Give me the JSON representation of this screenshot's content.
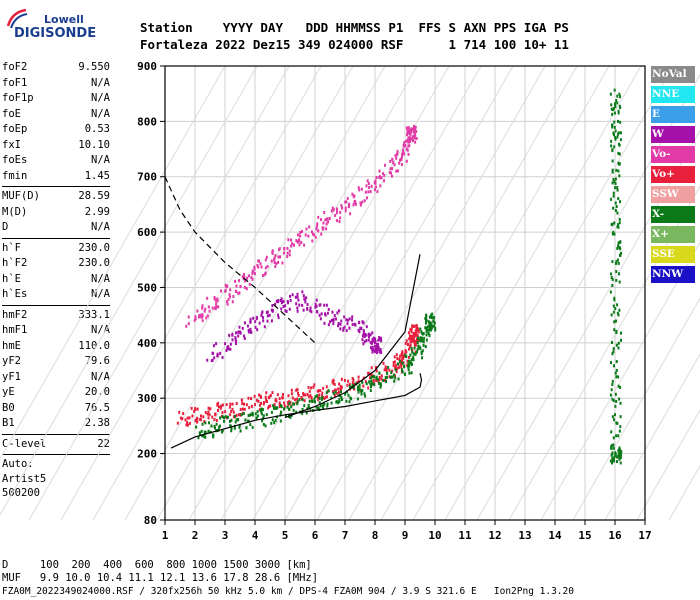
{
  "logo": {
    "brand": "Lowell",
    "product": "DIGISONDE"
  },
  "header": {
    "line1": "Station    YYYY DAY   DDD HHMMSS P1  FFS S AXN PPS IGA PS",
    "line2": "Fortaleza 2022 Dez15 349 024000 RSF      1 714 100 10+ 11"
  },
  "params": {
    "group1": [
      {
        "k": "foF2",
        "v": "9.550"
      },
      {
        "k": "foF1",
        "v": "N/A"
      },
      {
        "k": "foF1p",
        "v": "N/A"
      },
      {
        "k": "foE",
        "v": "N/A"
      },
      {
        "k": "foEp",
        "v": "0.53"
      },
      {
        "k": "fxI",
        "v": "10.10"
      },
      {
        "k": "foEs",
        "v": "N/A"
      },
      {
        "k": "fmin",
        "v": "1.45"
      }
    ],
    "group2": [
      {
        "k": "MUF(D)",
        "v": "28.59"
      },
      {
        "k": "M(D)",
        "v": "2.99"
      },
      {
        "k": "D",
        "v": "N/A"
      }
    ],
    "group3": [
      {
        "k": "h`F",
        "v": "230.0"
      },
      {
        "k": "h`F2",
        "v": "230.0"
      },
      {
        "k": "h`E",
        "v": "N/A"
      },
      {
        "k": "h`Es",
        "v": "N/A"
      }
    ],
    "group4": [
      {
        "k": "hmF2",
        "v": "333.1"
      },
      {
        "k": "hmF1",
        "v": "N/A"
      },
      {
        "k": "hmE",
        "v": "110.0"
      },
      {
        "k": "yF2",
        "v": "79.6"
      },
      {
        "k": "yF1",
        "v": "N/A"
      },
      {
        "k": "yE",
        "v": "20.0"
      },
      {
        "k": "B0",
        "v": "76.5"
      },
      {
        "k": "B1",
        "v": "2.38"
      }
    ],
    "group5": [
      {
        "k": "C-level",
        "v": "22"
      }
    ],
    "extra": [
      "Auto:",
      "Artist5",
      "500200"
    ]
  },
  "legend": [
    {
      "label": "NoVal",
      "color": "#8a8a8a"
    },
    {
      "label": "NNE",
      "color": "#22e6f0"
    },
    {
      "label": "E",
      "color": "#3a9ee8"
    },
    {
      "label": "W",
      "color": "#a410a8"
    },
    {
      "label": "Vo-",
      "color": "#e23aa6"
    },
    {
      "label": "Vo+",
      "color": "#e8203c"
    },
    {
      "label": "SSW",
      "color": "#f0a0a0"
    },
    {
      "label": "X-",
      "color": "#0a7a18"
    },
    {
      "label": "X+",
      "color": "#7ab860"
    },
    {
      "label": "SSE",
      "color": "#d8d81c"
    },
    {
      "label": "NNW",
      "color": "#1a10c8"
    }
  ],
  "footer": {
    "d_line": "D     100  200  400  600  800 1000 1500 3000 [km]",
    "muf_line": "MUF   9.9 10.0 10.4 11.1 12.1 13.6 17.8 28.6 [MHz]",
    "file_line": "FZA0M_2022349024000.RSF / 320fx256h 50 kHz 5.0 km / DPS-4 FZA0M 904 / 3.9 S 321.6 E   Ion2Png 1.3.20"
  },
  "chart_data": {
    "type": "scatter",
    "xlim": [
      1,
      17
    ],
    "ylim": [
      80,
      900
    ],
    "x_ticks": [
      1,
      2,
      3,
      4,
      5,
      6,
      7,
      8,
      9,
      10,
      11,
      12,
      13,
      14,
      15,
      16,
      17
    ],
    "y_ticks": [
      80,
      200,
      300,
      400,
      500,
      600,
      700,
      800,
      900
    ],
    "grid": true,
    "legend_position": "right",
    "traces": [
      {
        "name": "o-trace",
        "color": "#e8203c",
        "x": [
          1.5,
          2.5,
          3.5,
          4.5,
          5.5,
          6.5,
          7.5,
          8.5,
          9.0,
          9.3
        ],
        "y": [
          265,
          275,
          285,
          300,
          305,
          320,
          330,
          355,
          380,
          420
        ]
      },
      {
        "name": "x-trace",
        "color": "#0a7a18",
        "x": [
          2.0,
          3.0,
          4.0,
          5.0,
          6.0,
          7.0,
          8.0,
          9.0,
          9.5,
          9.8
        ],
        "y": [
          240,
          255,
          265,
          280,
          295,
          310,
          330,
          360,
          400,
          440
        ]
      },
      {
        "name": "w-cloud",
        "color": "#a410a8",
        "x": [
          2.5,
          3.5,
          4.5,
          5.5,
          6.5,
          7.5,
          8.0
        ],
        "y": [
          380,
          420,
          460,
          480,
          450,
          430,
          400
        ]
      },
      {
        "name": "o2-trace",
        "color": "#e23aa6",
        "x": [
          1.8,
          2.8,
          3.8,
          4.8,
          5.8,
          6.8,
          7.8,
          8.8,
          9.2
        ],
        "y": [
          440,
          480,
          520,
          560,
          600,
          640,
          680,
          730,
          780
        ]
      },
      {
        "name": "vertical-16",
        "color": "#0a7a18",
        "x": [
          16.0,
          16.0,
          16.0,
          16.0,
          16.0,
          16.0
        ],
        "y": [
          850,
          780,
          650,
          520,
          350,
          200
        ]
      }
    ],
    "curves": [
      {
        "name": "profile",
        "style": "solid",
        "x": [
          1.2,
          2.0,
          3.0,
          4.0,
          5.0,
          6.0,
          7.0,
          8.0,
          9.0,
          9.5,
          9.55,
          9.5
        ],
        "y": [
          210,
          230,
          245,
          260,
          270,
          278,
          285,
          295,
          305,
          320,
          333,
          345
        ]
      },
      {
        "name": "profile-upper",
        "style": "solid",
        "x": [
          5.0,
          6.0,
          7.0,
          8.0,
          9.0,
          9.5
        ],
        "y": [
          265,
          285,
          310,
          350,
          420,
          560
        ]
      },
      {
        "name": "muf",
        "style": "dashed",
        "x": [
          1.0,
          1.5,
          2.0,
          3.0,
          4.0,
          5.0,
          6.0
        ],
        "y": [
          700,
          640,
          600,
          545,
          500,
          450,
          400
        ]
      }
    ]
  }
}
